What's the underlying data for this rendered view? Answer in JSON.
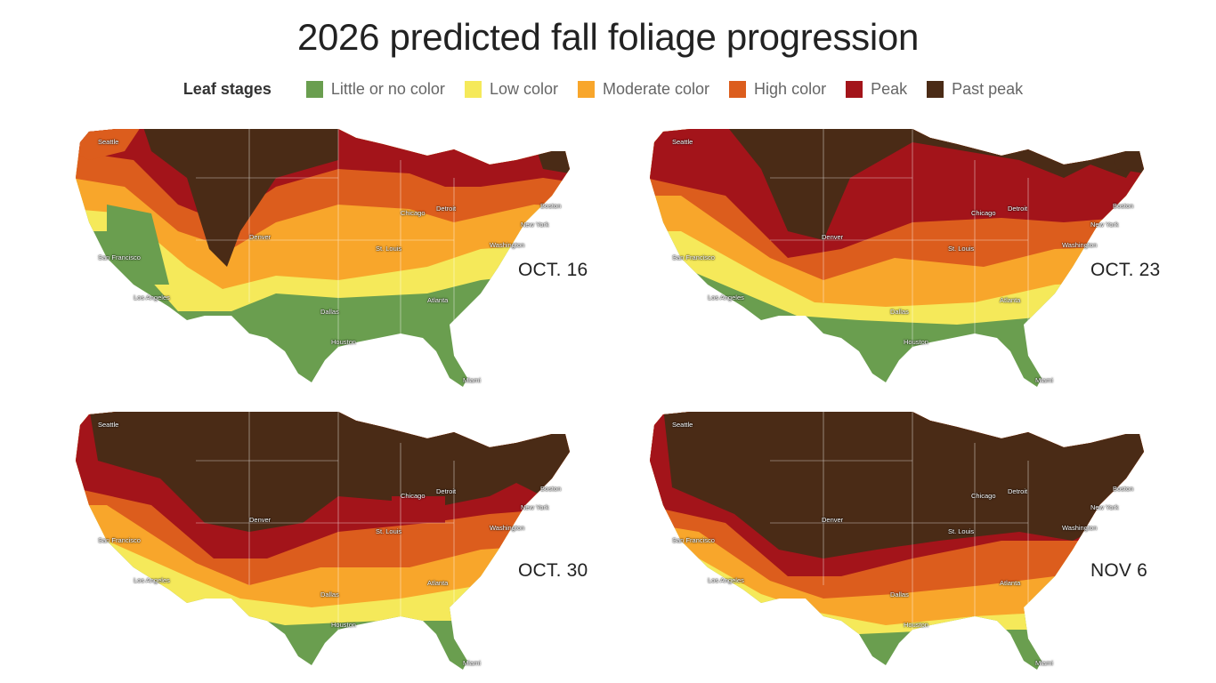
{
  "title": "2026 predicted fall foliage progression",
  "legend": {
    "heading": "Leaf stages",
    "items": [
      {
        "label": "Little or no color",
        "color": "#6a9e4f"
      },
      {
        "label": "Low color",
        "color": "#f5e95a"
      },
      {
        "label": "Moderate color",
        "color": "#f8a62b"
      },
      {
        "label": "High color",
        "color": "#dc5d1d"
      },
      {
        "label": "Peak",
        "color": "#a3141a"
      },
      {
        "label": "Past peak",
        "color": "#4a2b16"
      }
    ]
  },
  "cities": [
    "Seattle",
    "San Francisco",
    "Los Angeles",
    "Denver",
    "Dallas",
    "Houston",
    "St. Louis",
    "Chicago",
    "Detroit",
    "Atlanta",
    "Miami",
    "Washington",
    "New York",
    "Boston"
  ],
  "maps": [
    {
      "date": "OCT. 16"
    },
    {
      "date": "OCT. 23"
    },
    {
      "date": "OCT. 30"
    },
    {
      "date": "NOV 6"
    }
  ]
}
